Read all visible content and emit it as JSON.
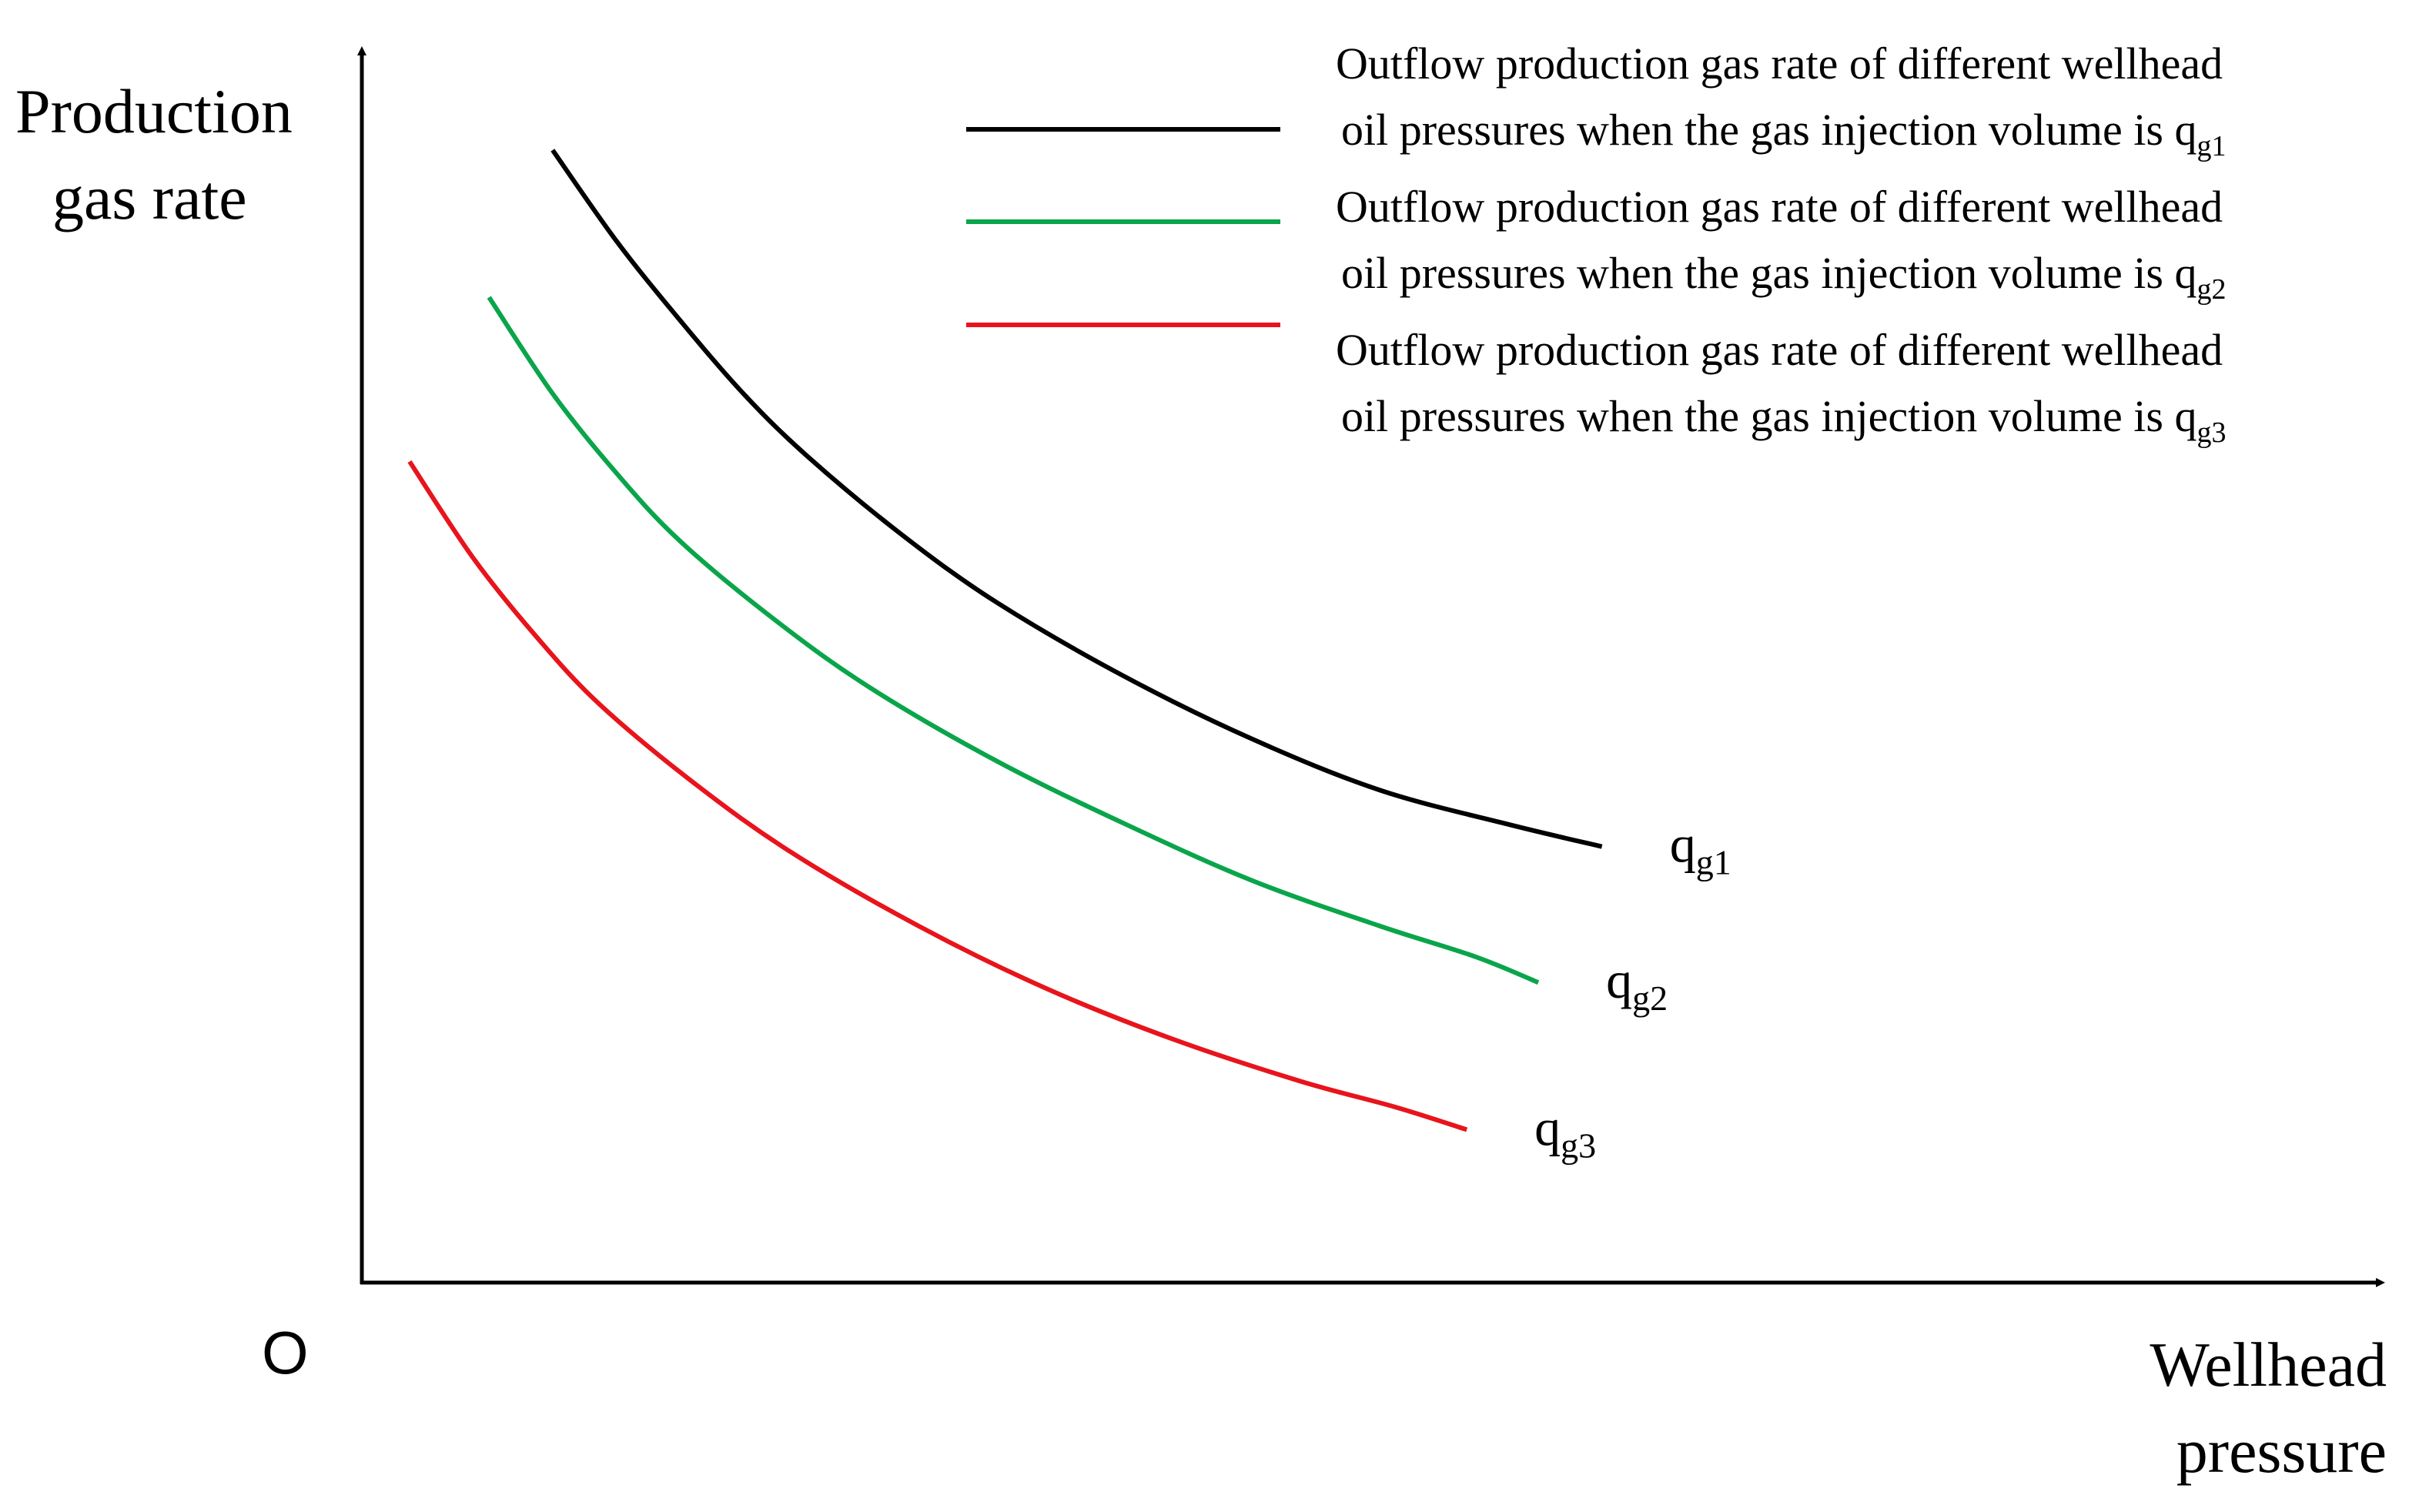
{
  "chart_data": {
    "type": "line",
    "title": "",
    "xlabel": "Wellhead pressure",
    "ylabel": "Production gas rate",
    "origin_label": "O",
    "xlim": [
      0,
      100
    ],
    "ylim": [
      0,
      100
    ],
    "grid": false,
    "legend_position": "top-right",
    "series": [
      {
        "name": "Outflow production gas rate of different wellhead oil pressures when the gas injection volume is q",
        "legend_line1": "Outflow production gas rate of different wellhead",
        "legend_line2": "oil pressures when the gas injection volume is q",
        "sub": "g1",
        "curve_label": "q",
        "color": "#000000",
        "x": [
          12,
          16,
          20,
          24,
          28,
          34,
          40,
          48,
          56,
          64,
          72,
          78
        ],
        "y": [
          100,
          92,
          85,
          78.5,
          73,
          66,
          60,
          53.5,
          48,
          43.5,
          40.5,
          38.5
        ]
      },
      {
        "name": "Outflow production gas rate of different wellhead oil pressures when the gas injection volume is q",
        "legend_line1": "Outflow production gas rate of different wellhead",
        "legend_line2": "oil pressures when the gas injection volume is q",
        "sub": "g2",
        "curve_label": "q",
        "color": "#0aa54a",
        "x": [
          8,
          12,
          16,
          20,
          26,
          32,
          40,
          48,
          56,
          64,
          70,
          74
        ],
        "y": [
          87,
          78.5,
          71.5,
          65.5,
          58.5,
          52.5,
          46,
          40.5,
          35.5,
          31.5,
          28.8,
          26.5
        ]
      },
      {
        "name": "Outflow production gas rate of different wellhead oil pressures when the gas injection volume is q",
        "legend_line1": "Outflow production gas rate of different wellhead",
        "legend_line2": "oil pressures when the gas injection volume is q",
        "sub": "g3",
        "curve_label": "q",
        "color": "#e8141c",
        "x": [
          3,
          7,
          11,
          15,
          21,
          27,
          35,
          43,
          51,
          59,
          65,
          69.5
        ],
        "y": [
          72.5,
          64,
          57,
          51,
          44,
          38,
          31.5,
          26,
          21.5,
          17.8,
          15.5,
          13.5
        ]
      }
    ]
  }
}
